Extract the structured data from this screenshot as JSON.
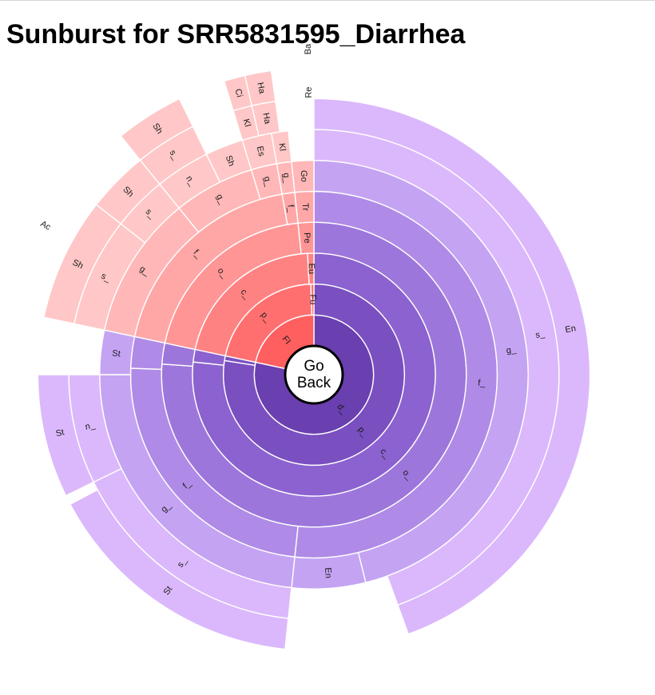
{
  "page": {
    "title": "Sunburst for SRR5831595_Diarrhea"
  },
  "center_button": {
    "line1": "Go",
    "line2": "Back"
  },
  "chart_data": {
    "type": "sunburst",
    "title": "Sunburst for SRR5831595_Diarrhea",
    "start_angle_deg": 0,
    "branches": [
      {
        "color": "#6a3fb0",
        "depth_colors": [
          "#6a3fb0",
          "#7a4fc0",
          "#8b62cf",
          "#9d76db",
          "#af8be7",
          "#c4a3f3",
          "#dbb8fc"
        ]
      },
      {
        "color": "#ff5a5a",
        "depth_colors": [
          "#ff5f5f",
          "#ff6f6f",
          "#ff8282",
          "#ff9595",
          "#ffa7a7",
          "#ffb7b7",
          "#ffc7c7"
        ]
      }
    ],
    "segments": [
      {
        "branch": 0,
        "depth": 0,
        "start": 0,
        "end": 282,
        "label": "d_"
      },
      {
        "branch": 1,
        "depth": 0,
        "start": 282,
        "end": 360,
        "label": "FI"
      },
      {
        "branch": 0,
        "depth": 1,
        "start": 0,
        "end": 279,
        "label": "p_"
      },
      {
        "branch": 0,
        "depth": 1,
        "start": 279,
        "end": 282,
        "label": ""
      },
      {
        "branch": 1,
        "depth": 1,
        "start": 282,
        "end": 358,
        "label": "p_"
      },
      {
        "branch": 1,
        "depth": 1,
        "start": 358,
        "end": 360,
        "label": "Fu"
      },
      {
        "branch": 0,
        "depth": 2,
        "start": 0,
        "end": 276,
        "label": "c_"
      },
      {
        "branch": 0,
        "depth": 2,
        "start": 276,
        "end": 282,
        "label": ""
      },
      {
        "branch": 1,
        "depth": 2,
        "start": 282,
        "end": 357,
        "label": "c_"
      },
      {
        "branch": 1,
        "depth": 2,
        "start": 357,
        "end": 360,
        "label": "Eu"
      },
      {
        "branch": 0,
        "depth": 3,
        "start": 0,
        "end": 274,
        "label": "o_"
      },
      {
        "branch": 0,
        "depth": 3,
        "start": 274,
        "end": 282,
        "label": ""
      },
      {
        "branch": 1,
        "depth": 3,
        "start": 282,
        "end": 354,
        "label": "o_"
      },
      {
        "branch": 1,
        "depth": 3,
        "start": 354,
        "end": 360,
        "label": "Pe"
      },
      {
        "branch": 0,
        "depth": 4,
        "start": 0,
        "end": 186,
        "label": "f_"
      },
      {
        "branch": 0,
        "depth": 4,
        "start": 186,
        "end": 272,
        "label": "f_"
      },
      {
        "branch": 0,
        "depth": 4,
        "start": 272,
        "end": 282,
        "label": ""
      },
      {
        "branch": 1,
        "depth": 4,
        "start": 282,
        "end": 350,
        "label": "f_"
      },
      {
        "branch": 1,
        "depth": 4,
        "start": 350,
        "end": 354,
        "label": "f_"
      },
      {
        "branch": 1,
        "depth": 4,
        "start": 354,
        "end": 360,
        "label": "Tr"
      },
      {
        "branch": 0,
        "depth": 5,
        "start": 0,
        "end": 166,
        "label": "g_"
      },
      {
        "branch": 0,
        "depth": 5,
        "start": 166,
        "end": 186,
        "label": "En"
      },
      {
        "branch": 0,
        "depth": 5,
        "start": 186,
        "end": 270,
        "label": "g_"
      },
      {
        "branch": 0,
        "depth": 5,
        "start": 270,
        "end": 282,
        "label": "St"
      },
      {
        "branch": 1,
        "depth": 5,
        "start": 282,
        "end": 321,
        "label": "g_"
      },
      {
        "branch": 1,
        "depth": 5,
        "start": 321,
        "end": 343,
        "label": "g_"
      },
      {
        "branch": 1,
        "depth": 5,
        "start": 343,
        "end": 350,
        "label": "g_"
      },
      {
        "branch": 1,
        "depth": 5,
        "start": 350,
        "end": 354,
        "label": "g_"
      },
      {
        "branch": 1,
        "depth": 5,
        "start": 354,
        "end": 360,
        "label": "Go"
      },
      {
        "branch": 0,
        "depth": 6,
        "start": 0,
        "end": 160,
        "label": "s_"
      },
      {
        "branch": 0,
        "depth": 6,
        "start": 186,
        "end": 244,
        "label": "s_"
      },
      {
        "branch": 0,
        "depth": 6,
        "start": 244,
        "end": 270,
        "label": "n_"
      },
      {
        "branch": 1,
        "depth": 6,
        "start": 282,
        "end": 308,
        "label": "s_"
      },
      {
        "branch": 1,
        "depth": 6,
        "start": 308,
        "end": 321,
        "label": "s_"
      },
      {
        "branch": 1,
        "depth": 6,
        "start": 321,
        "end": 334,
        "label": "n_"
      },
      {
        "branch": 1,
        "depth": 6,
        "start": 334,
        "end": 343,
        "label": "Sh"
      },
      {
        "branch": 1,
        "depth": 6,
        "start": 343,
        "end": 350,
        "label": "Es"
      },
      {
        "branch": 1,
        "depth": 6,
        "start": 350,
        "end": 354,
        "label": "Kl"
      },
      {
        "branch": 0,
        "depth": 7,
        "start": 0,
        "end": 160,
        "label": "En"
      },
      {
        "branch": 0,
        "depth": 7,
        "start": 186,
        "end": 242,
        "label": "St"
      },
      {
        "branch": 0,
        "depth": 7,
        "start": 244,
        "end": 270,
        "label": "St"
      },
      {
        "branch": 1,
        "depth": 7,
        "start": 282,
        "end": 308,
        "label": "Sh"
      },
      {
        "branch": 1,
        "depth": 7,
        "start": 308,
        "end": 321,
        "label": "Sh"
      },
      {
        "branch": 1,
        "depth": 7,
        "start": 321,
        "end": 334,
        "label": "s_"
      },
      {
        "branch": 1,
        "depth": 7,
        "start": 343,
        "end": 347,
        "label": "Kl"
      },
      {
        "branch": 1,
        "depth": 7,
        "start": 347,
        "end": 352,
        "label": "Ha"
      },
      {
        "branch": 1,
        "depth": 8,
        "start": 321,
        "end": 334,
        "label": "Sh"
      },
      {
        "branch": 1,
        "depth": 8,
        "start": 343,
        "end": 347,
        "label": "Ci"
      },
      {
        "branch": 1,
        "depth": 8,
        "start": 347,
        "end": 352,
        "label": "Ha"
      }
    ],
    "outer_labels": [
      {
        "angle": -1,
        "depth": 9.6,
        "label": "Ba"
      },
      {
        "angle": -1,
        "depth": 8.2,
        "label": "Re"
      },
      {
        "angle": 299,
        "depth": 9.0,
        "label": "Ac"
      }
    ]
  }
}
